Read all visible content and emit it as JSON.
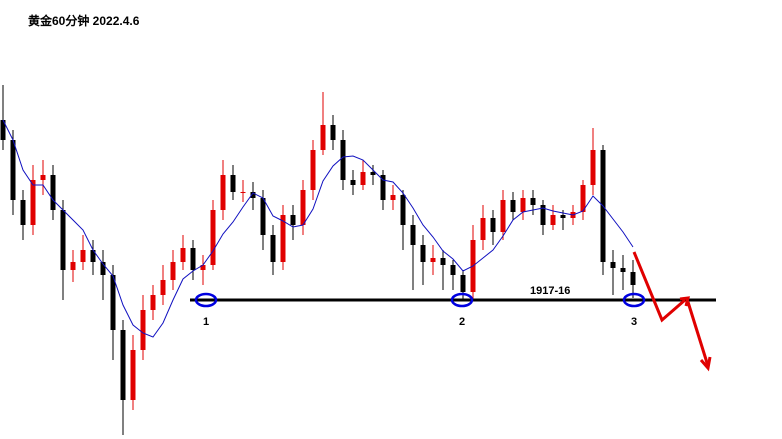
{
  "chart_data": {
    "type": "candlestick",
    "title": "黄金60分钟 2022.4.6",
    "up_color": "#e00000",
    "down_color": "#000000",
    "ylim": [
      1903.1,
      1947
    ],
    "ohlc": [
      [
        1935.0,
        1938.5,
        1932.0,
        1933.0
      ],
      [
        1933.0,
        1934.0,
        1925.5,
        1927.0
      ],
      [
        1927.0,
        1928.0,
        1923.0,
        1924.5
      ],
      [
        1924.5,
        1930.5,
        1923.5,
        1929.0
      ],
      [
        1929.0,
        1931.0,
        1927.5,
        1929.5
      ],
      [
        1929.5,
        1930.5,
        1925.0,
        1926.0
      ],
      [
        1926.0,
        1927.0,
        1917.0,
        1920.0
      ],
      [
        1920.0,
        1922.0,
        1918.8,
        1920.8
      ],
      [
        1920.8,
        1923.5,
        1920.0,
        1922.0
      ],
      [
        1922.0,
        1923.0,
        1919.5,
        1920.8
      ],
      [
        1920.8,
        1922.0,
        1917.0,
        1919.5
      ],
      [
        1919.5,
        1920.5,
        1911.0,
        1914.0
      ],
      [
        1914.0,
        1915.0,
        1903.5,
        1907.0
      ],
      [
        1907.0,
        1913.5,
        1906.0,
        1912.0
      ],
      [
        1912.0,
        1917.5,
        1911.0,
        1916.0
      ],
      [
        1916.0,
        1918.5,
        1915.0,
        1917.5
      ],
      [
        1917.5,
        1920.5,
        1916.5,
        1919.0
      ],
      [
        1919.0,
        1922.0,
        1918.0,
        1920.8
      ],
      [
        1920.8,
        1923.5,
        1920.0,
        1922.2
      ],
      [
        1922.2,
        1923.0,
        1919.0,
        1920.0
      ],
      [
        1920.0,
        1921.5,
        1918.5,
        1920.5
      ],
      [
        1920.5,
        1927.0,
        1920.0,
        1926.0
      ],
      [
        1926.0,
        1931.0,
        1925.0,
        1929.5
      ],
      [
        1929.5,
        1930.5,
        1927.0,
        1927.8
      ],
      [
        1927.8,
        1929.0,
        1926.8,
        1927.8
      ],
      [
        1927.8,
        1928.8,
        1926.0,
        1927.2
      ],
      [
        1927.2,
        1928.0,
        1922.0,
        1923.5
      ],
      [
        1923.5,
        1924.5,
        1919.5,
        1920.8
      ],
      [
        1920.8,
        1926.5,
        1920.0,
        1925.5
      ],
      [
        1925.5,
        1926.5,
        1923.0,
        1924.5
      ],
      [
        1924.5,
        1929.0,
        1923.5,
        1928.0
      ],
      [
        1928.0,
        1933.0,
        1927.0,
        1932.0
      ],
      [
        1932.0,
        1937.8,
        1931.5,
        1934.5
      ],
      [
        1934.5,
        1935.5,
        1932.0,
        1933.0
      ],
      [
        1933.0,
        1934.0,
        1928.0,
        1929.0
      ],
      [
        1929.0,
        1930.0,
        1927.5,
        1928.5
      ],
      [
        1928.5,
        1931.0,
        1928.0,
        1929.8
      ],
      [
        1929.8,
        1930.5,
        1928.5,
        1929.5
      ],
      [
        1929.5,
        1930.0,
        1926.0,
        1927.0
      ],
      [
        1927.0,
        1928.5,
        1926.0,
        1927.5
      ],
      [
        1927.5,
        1928.0,
        1922.0,
        1924.5
      ],
      [
        1924.5,
        1925.5,
        1918.0,
        1922.5
      ],
      [
        1922.5,
        1923.5,
        1918.5,
        1920.8
      ],
      [
        1920.8,
        1922.5,
        1919.5,
        1921.2
      ],
      [
        1921.2,
        1922.0,
        1918.0,
        1920.5
      ],
      [
        1920.5,
        1921.0,
        1918.0,
        1919.5
      ],
      [
        1919.5,
        1920.0,
        1917.0,
        1917.8
      ],
      [
        1917.8,
        1924.5,
        1917.0,
        1923.0
      ],
      [
        1923.0,
        1926.5,
        1922.0,
        1925.2
      ],
      [
        1925.2,
        1926.0,
        1922.5,
        1923.8
      ],
      [
        1923.8,
        1928.0,
        1923.0,
        1927.0
      ],
      [
        1927.0,
        1927.8,
        1925.0,
        1925.8
      ],
      [
        1925.8,
        1928.0,
        1925.0,
        1927.2
      ],
      [
        1927.2,
        1928.0,
        1925.5,
        1926.5
      ],
      [
        1926.5,
        1927.0,
        1923.5,
        1924.5
      ],
      [
        1924.5,
        1926.5,
        1924.0,
        1925.5
      ],
      [
        1925.5,
        1926.0,
        1924.0,
        1925.2
      ],
      [
        1925.2,
        1926.5,
        1924.5,
        1925.8
      ],
      [
        1925.8,
        1929.0,
        1925.0,
        1928.5
      ],
      [
        1928.5,
        1934.2,
        1927.5,
        1932.0
      ],
      [
        1932.0,
        1932.5,
        1919.5,
        1920.8
      ],
      [
        1920.8,
        1922.0,
        1917.5,
        1920.2
      ],
      [
        1920.2,
        1921.5,
        1918.0,
        1919.8
      ],
      [
        1919.8,
        1921.0,
        1917.2,
        1918.5
      ]
    ],
    "moving_average": {
      "color": "#1010c0",
      "values": [
        1935,
        1933,
        1930,
        1928.5,
        1928.5,
        1927,
        1926,
        1925,
        1924,
        1922,
        1920.6,
        1919.4,
        1916.5,
        1914.5,
        1913.7,
        1913.3,
        1914.7,
        1917,
        1919.1,
        1919.9,
        1920.5,
        1921.9,
        1923.6,
        1924.8,
        1926.3,
        1927.7,
        1927.2,
        1925.4,
        1924.9,
        1924.3,
        1924.5,
        1926.1,
        1928.9,
        1930.4,
        1931.3,
        1931.4,
        1931,
        1930,
        1929,
        1928.8,
        1927.7,
        1926.2,
        1924.5,
        1923.3,
        1921.9,
        1921.1,
        1919.9,
        1920.4,
        1921.2,
        1922,
        1923.4,
        1925,
        1925.8,
        1926,
        1926.2,
        1925.9,
        1925.7,
        1925.5,
        1925.9,
        1927.4,
        1926.4,
        1925.1,
        1923.8,
        1922.3
      ]
    },
    "support": {
      "value": 1917,
      "label": "1917-16"
    },
    "annotations": [
      "1",
      "2",
      "3"
    ]
  }
}
